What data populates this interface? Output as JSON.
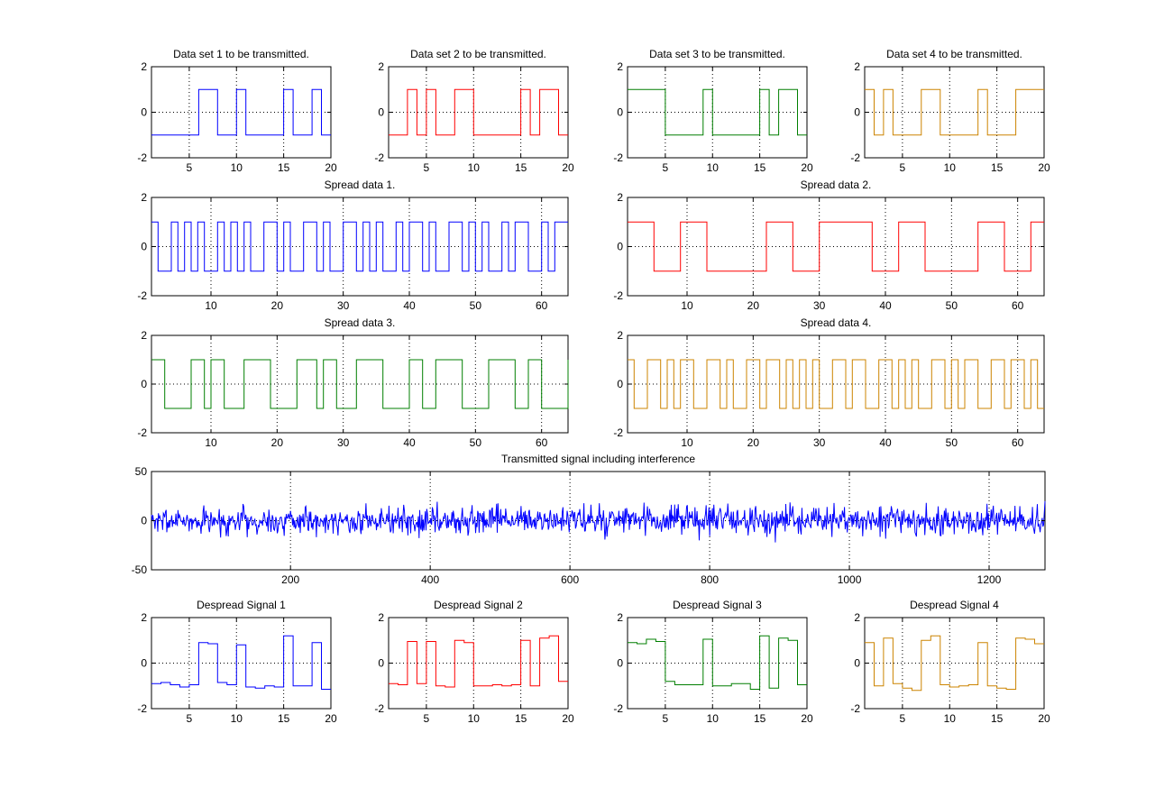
{
  "figure": {
    "background": "#ffffff",
    "series_colors": {
      "blue": "#0000ff",
      "red": "#ff0000",
      "green": "#007f00",
      "orange": "#cc8400"
    }
  },
  "chart_data": [
    {
      "id": "data1",
      "type": "line",
      "step": true,
      "title": "Data set 1 to be transmitted.",
      "color": "#0000ff",
      "xlim": [
        1,
        20
      ],
      "ylim": [
        -2,
        2
      ],
      "xticks": [
        5,
        10,
        15,
        20
      ],
      "yticks": [
        -2,
        0,
        2
      ],
      "grid": true,
      "values": [
        -1,
        -1,
        -1,
        -1,
        -1,
        1,
        1,
        -1,
        -1,
        1,
        -1,
        -1,
        -1,
        -1,
        1,
        -1,
        -1,
        1,
        -1,
        -1
      ]
    },
    {
      "id": "data2",
      "type": "line",
      "step": true,
      "title": "Data set 2 to be transmitted.",
      "color": "#ff0000",
      "xlim": [
        1,
        20
      ],
      "ylim": [
        -2,
        2
      ],
      "xticks": [
        5,
        10,
        15,
        20
      ],
      "yticks": [
        -2,
        0,
        2
      ],
      "grid": true,
      "values": [
        -1,
        -1,
        1,
        -1,
        1,
        -1,
        -1,
        1,
        1,
        -1,
        -1,
        -1,
        -1,
        -1,
        1,
        -1,
        1,
        1,
        -1,
        -1
      ]
    },
    {
      "id": "data3",
      "type": "line",
      "step": true,
      "title": "Data set 3 to be transmitted.",
      "color": "#007f00",
      "xlim": [
        1,
        20
      ],
      "ylim": [
        -2,
        2
      ],
      "xticks": [
        5,
        10,
        15,
        20
      ],
      "yticks": [
        -2,
        0,
        2
      ],
      "grid": true,
      "values": [
        1,
        1,
        1,
        1,
        -1,
        -1,
        -1,
        -1,
        1,
        -1,
        -1,
        -1,
        -1,
        -1,
        1,
        -1,
        1,
        1,
        -1,
        -1
      ]
    },
    {
      "id": "data4",
      "type": "line",
      "step": true,
      "title": "Data set 4 to be transmitted.",
      "color": "#cc8400",
      "xlim": [
        1,
        20
      ],
      "ylim": [
        -2,
        2
      ],
      "xticks": [
        5,
        10,
        15,
        20
      ],
      "yticks": [
        -2,
        0,
        2
      ],
      "grid": true,
      "values": [
        1,
        -1,
        1,
        -1,
        -1,
        -1,
        1,
        1,
        -1,
        -1,
        -1,
        -1,
        1,
        -1,
        -1,
        -1,
        1,
        1,
        1,
        1
      ]
    },
    {
      "id": "spread1",
      "type": "line",
      "step": true,
      "title": "Spread data 1.",
      "color": "#0000ff",
      "xlim": [
        1,
        64
      ],
      "ylim": [
        -2,
        2
      ],
      "xticks": [
        10,
        20,
        30,
        40,
        50,
        60
      ],
      "yticks": [
        -2,
        0,
        2
      ],
      "grid": true,
      "values": [
        1,
        -1,
        -1,
        1,
        -1,
        1,
        -1,
        1,
        -1,
        -1,
        1,
        -1,
        1,
        -1,
        1,
        -1,
        -1,
        1,
        1,
        -1,
        1,
        -1,
        -1,
        1,
        1,
        -1,
        1,
        -1,
        -1,
        1,
        1,
        -1,
        1,
        -1,
        1,
        -1,
        -1,
        1,
        -1,
        1,
        1,
        -1,
        1,
        -1,
        -1,
        1,
        1,
        -1,
        1,
        -1,
        1,
        -1,
        -1,
        1,
        -1,
        1,
        1,
        -1,
        -1,
        1,
        -1,
        1,
        1,
        1
      ]
    },
    {
      "id": "spread2",
      "type": "line",
      "step": true,
      "title": "Spread data 2.",
      "color": "#ff0000",
      "xlim": [
        1,
        64
      ],
      "ylim": [
        -2,
        2
      ],
      "xticks": [
        10,
        20,
        30,
        40,
        50,
        60
      ],
      "yticks": [
        -2,
        0,
        2
      ],
      "grid": true,
      "values": [
        1,
        1,
        1,
        1,
        -1,
        -1,
        -1,
        -1,
        1,
        1,
        1,
        1,
        -1,
        -1,
        -1,
        -1,
        -1,
        -1,
        -1,
        -1,
        -1,
        1,
        1,
        1,
        1,
        -1,
        -1,
        -1,
        -1,
        1,
        1,
        1,
        1,
        1,
        1,
        1,
        1,
        -1,
        -1,
        -1,
        -1,
        1,
        1,
        1,
        1,
        -1,
        -1,
        -1,
        -1,
        -1,
        -1,
        -1,
        -1,
        1,
        1,
        1,
        1,
        -1,
        -1,
        -1,
        -1,
        1,
        1,
        1
      ]
    },
    {
      "id": "spread3",
      "type": "line",
      "step": true,
      "title": "Spread data 3.",
      "color": "#007f00",
      "xlim": [
        1,
        64
      ],
      "ylim": [
        -2,
        2
      ],
      "xticks": [
        10,
        20,
        30,
        40,
        50,
        60
      ],
      "yticks": [
        -2,
        0,
        2
      ],
      "grid": true,
      "values": [
        1,
        1,
        -1,
        -1,
        -1,
        -1,
        1,
        1,
        -1,
        1,
        1,
        -1,
        -1,
        -1,
        1,
        1,
        1,
        1,
        -1,
        -1,
        -1,
        -1,
        1,
        1,
        1,
        -1,
        1,
        1,
        -1,
        -1,
        -1,
        1,
        1,
        1,
        1,
        -1,
        -1,
        -1,
        -1,
        1,
        1,
        -1,
        -1,
        1,
        1,
        1,
        1,
        -1,
        -1,
        -1,
        -1,
        1,
        1,
        1,
        1,
        -1,
        -1,
        1,
        1,
        -1,
        -1,
        -1,
        -1,
        1
      ]
    },
    {
      "id": "spread4",
      "type": "line",
      "step": true,
      "title": "Spread data 4.",
      "color": "#cc8400",
      "xlim": [
        1,
        64
      ],
      "ylim": [
        -2,
        2
      ],
      "xticks": [
        10,
        20,
        30,
        40,
        50,
        60
      ],
      "yticks": [
        -2,
        0,
        2
      ],
      "grid": true,
      "values": [
        1,
        -1,
        -1,
        1,
        1,
        -1,
        1,
        -1,
        1,
        1,
        -1,
        -1,
        1,
        1,
        -1,
        1,
        -1,
        -1,
        1,
        1,
        -1,
        1,
        1,
        -1,
        1,
        -1,
        1,
        -1,
        1,
        -1,
        -1,
        1,
        1,
        -1,
        1,
        1,
        -1,
        -1,
        1,
        1,
        -1,
        1,
        -1,
        1,
        -1,
        -1,
        1,
        1,
        -1,
        1,
        -1,
        1,
        1,
        -1,
        -1,
        1,
        1,
        -1,
        1,
        1,
        -1,
        1,
        -1,
        -1
      ]
    },
    {
      "id": "transmitted",
      "type": "line",
      "step": false,
      "title": "Transmitted signal including interference",
      "color": "#0000ff",
      "xlim": [
        1,
        1280
      ],
      "ylim": [
        -50,
        50
      ],
      "xticks": [
        200,
        400,
        600,
        800,
        1000,
        1200
      ],
      "yticks": [
        -50,
        0,
        50
      ],
      "grid": true,
      "noise": {
        "n": 1280,
        "approx_sd": 7,
        "approx_min": -30,
        "approx_max": 32,
        "seed": 7
      }
    },
    {
      "id": "despread1",
      "type": "line",
      "step": true,
      "title": "Despread Signal 1",
      "color": "#0000ff",
      "xlim": [
        1,
        20
      ],
      "ylim": [
        -2,
        2
      ],
      "xticks": [
        5,
        10,
        15,
        20
      ],
      "yticks": [
        -2,
        0,
        2
      ],
      "grid": true,
      "values": [
        -0.9,
        -0.85,
        -0.95,
        -1.05,
        -0.95,
        0.9,
        0.85,
        -0.85,
        -0.95,
        0.8,
        -1.05,
        -1.1,
        -1.0,
        -1.05,
        1.2,
        -1.0,
        -1.0,
        0.9,
        -1.15,
        -1.15
      ]
    },
    {
      "id": "despread2",
      "type": "line",
      "step": true,
      "title": "Despread Signal 2",
      "color": "#ff0000",
      "xlim": [
        1,
        20
      ],
      "ylim": [
        -2,
        2
      ],
      "xticks": [
        5,
        10,
        15,
        20
      ],
      "yticks": [
        -2,
        0,
        2
      ],
      "grid": true,
      "values": [
        -0.9,
        -0.95,
        0.95,
        -0.9,
        0.95,
        -1.0,
        -1.05,
        1.0,
        0.9,
        -1.0,
        -1.0,
        -0.95,
        -1.0,
        -0.95,
        1.0,
        -1.0,
        1.1,
        1.2,
        -0.8,
        -0.8
      ]
    },
    {
      "id": "despread3",
      "type": "line",
      "step": true,
      "title": "Despread Signal 3",
      "color": "#007f00",
      "xlim": [
        1,
        20
      ],
      "ylim": [
        -2,
        2
      ],
      "xticks": [
        5,
        10,
        15,
        20
      ],
      "yticks": [
        -2,
        0,
        2
      ],
      "grid": true,
      "values": [
        0.9,
        0.85,
        1.05,
        0.95,
        -0.8,
        -0.95,
        -0.95,
        -0.95,
        1.05,
        -1.0,
        -1.0,
        -0.9,
        -0.9,
        -1.15,
        1.2,
        -1.1,
        1.1,
        1.0,
        -0.95,
        -0.95
      ]
    },
    {
      "id": "despread4",
      "type": "line",
      "step": true,
      "title": "Despread Signal 4",
      "color": "#cc8400",
      "xlim": [
        1,
        20
      ],
      "ylim": [
        -2,
        2
      ],
      "xticks": [
        5,
        10,
        15,
        20
      ],
      "yticks": [
        -2,
        0,
        2
      ],
      "grid": true,
      "values": [
        0.9,
        -1.0,
        1.1,
        -0.9,
        -1.1,
        -1.2,
        1.0,
        1.2,
        -0.95,
        -1.05,
        -1.0,
        -0.95,
        0.9,
        -1.0,
        -1.1,
        -1.15,
        1.1,
        1.05,
        0.85,
        0.85
      ]
    }
  ]
}
